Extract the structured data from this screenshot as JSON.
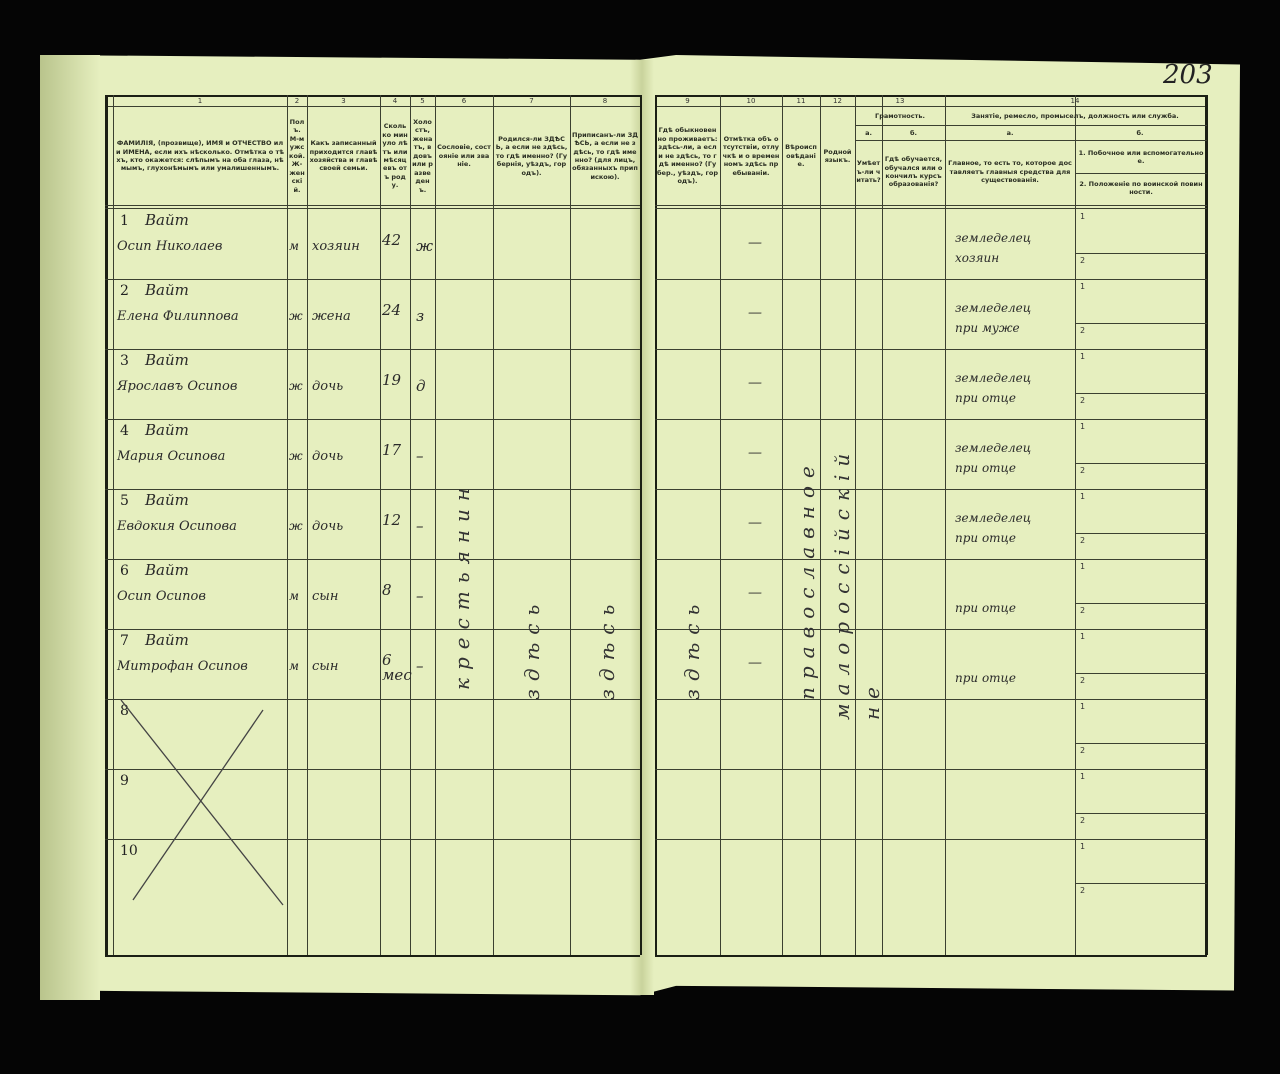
{
  "page_number": "203",
  "column_numbers": [
    "1",
    "2",
    "3",
    "4",
    "5",
    "6",
    "7",
    "8",
    "9",
    "10",
    "11",
    "12",
    "13",
    "14"
  ],
  "headers": {
    "c1": "ФАМИЛІЯ, (прозвище), ИМЯ и ОТЧЕСТВО или ИМЕНА, если ихъ нѣсколько. Отмѣтка о тѣхъ, кто окажется: слѣпымъ на оба глаза, нѣмымъ, глухонѣмымъ или умалишеннымъ.",
    "c2": "Полъ. М-мужской. Ж-женскій.",
    "c3": "Какъ записанный приходится главѣ хозяйства и главѣ своей семьи.",
    "c4": "Сколько минуло лѣтъ или мѣсяцевъ отъ роду.",
    "c5": "Холостъ, женатъ, вдовъ или разведенъ.",
    "c6": "Сословіе, состояніе или званіе.",
    "c7": "Родился-ли ЗДѢСЬ, а если не здѣсь, то гдѣ именно? (Губернія, уѣздъ, городъ).",
    "c8": "Приписанъ-ли ЗДѢСЬ, а если не здѣсь, то гдѣ именно? (для лицъ, обязанныхъ припискою).",
    "c9": "Гдѣ обыкновенно проживаетъ: здѣсь-ли, а если не здѣсь, то гдѣ именно? (Губер., уѣздъ, городъ).",
    "c10": "Отмѣтка объ отсутствіи, отлучкѣ и о временномъ здѣсь пребываніи.",
    "c11": "Вѣроисповѣданіе.",
    "c12": "Родной языкъ.",
    "c13": "Грамотность.",
    "c13a_letter": "а.",
    "c13a": "Умѣетъ-ли читать?",
    "c13b_letter": "б.",
    "c13b": "Гдѣ обучается, обучался или окончилъ курсъ образованія?",
    "c14": "Занятіе, ремесло, промыселъ, должность или служба.",
    "c14a_letter": "а.",
    "c14a": "Главное, то есть то, которое доставляетъ главныя средства для существованія.",
    "c14b_letter": "б.",
    "c14b1": "1. Побочное или вспомогательное.",
    "c14b2": "2. Положеніе по воинской повинности."
  },
  "rows": [
    {
      "n": "1",
      "surname": "Вайт",
      "name": "Осип Николаев",
      "sex": "м",
      "relation": "хозяин",
      "age": "42",
      "marital": "ж",
      "occ": "земледелец",
      "occ2": "хозяин"
    },
    {
      "n": "2",
      "surname": "Вайт",
      "name": "Елена Филиппова",
      "sex": "ж",
      "relation": "жена",
      "age": "24",
      "marital": "з",
      "occ": "земледелец",
      "occ2": "при муже"
    },
    {
      "n": "3",
      "surname": "Вайт",
      "name": "Ярославъ Осипов",
      "sex": "ж",
      "relation": "дочь",
      "age": "19",
      "marital": "д",
      "occ": "земледелец",
      "occ2": "при отце"
    },
    {
      "n": "4",
      "surname": "Вайт",
      "name": "Мария Осипова",
      "sex": "ж",
      "relation": "дочь",
      "age": "17",
      "marital": "–",
      "occ": "земледелец",
      "occ2": "при отце"
    },
    {
      "n": "5",
      "surname": "Вайт",
      "name": "Евдокия Осипова",
      "sex": "ж",
      "relation": "дочь",
      "age": "12",
      "marital": "–",
      "occ": "земледелец",
      "occ2": "при отце"
    },
    {
      "n": "6",
      "surname": "Вайт",
      "name": "Осип Осипов",
      "sex": "м",
      "relation": "сын",
      "age": "8",
      "marital": "–",
      "occ": "",
      "occ2": "при отце"
    },
    {
      "n": "7",
      "surname": "Вайт",
      "name": "Митрофан Осипов",
      "sex": "м",
      "relation": "сын",
      "age": "6 мес",
      "marital": "–",
      "occ": "",
      "occ2": "при отце"
    }
  ],
  "empty_rows": [
    "8",
    "9",
    "10"
  ],
  "sub_labels": [
    "1",
    "2"
  ],
  "vertical_entries": {
    "estate": "крестьянин",
    "born": "здѣсь",
    "registered": "здѣсь",
    "resides": "здѣсь",
    "religion": "православное",
    "language": "малороссійскій",
    "literate": "не",
    "absence": "—"
  }
}
